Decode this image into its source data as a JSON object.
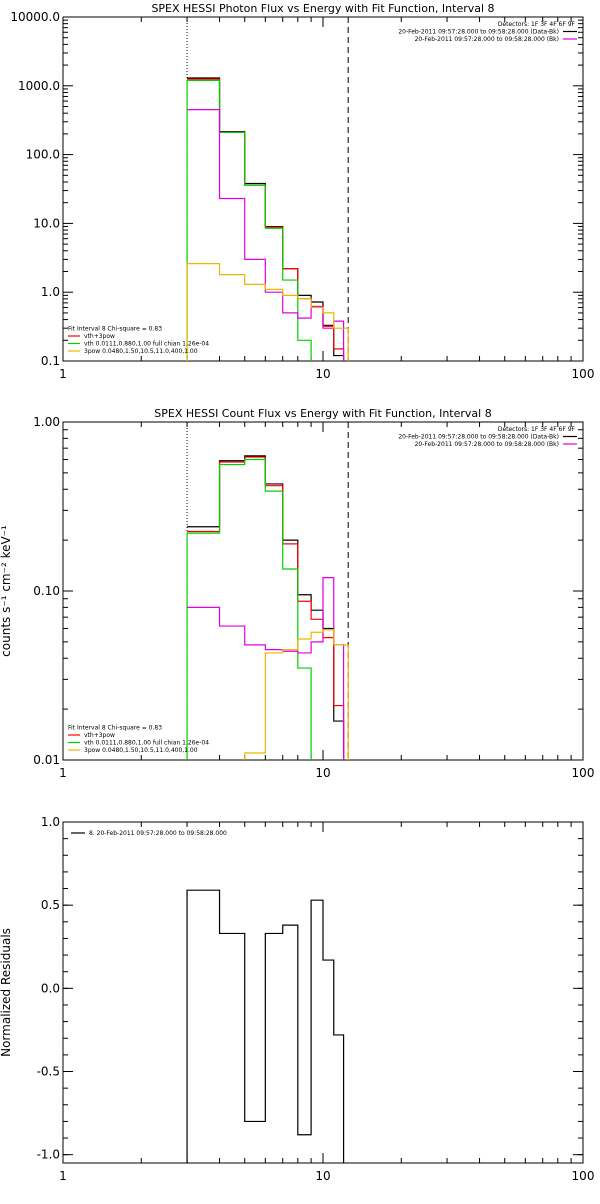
{
  "colors": {
    "black": "#000000",
    "red": "#ff0000",
    "green": "#00d000",
    "magenta": "#e000e0",
    "yellow": "#e8b800"
  },
  "chart_data": [
    {
      "type": "line",
      "title": "SPEX HESSI Photon Flux vs Energy with Fit Function, Interval 8",
      "xlabel": "",
      "ylabel": "",
      "x_scale": "log",
      "y_scale": "log",
      "xlim": [
        1,
        100
      ],
      "ylim": [
        0.1,
        10000
      ],
      "x_ticks": [
        {
          "v": 1,
          "label": "1"
        },
        {
          "v": 10,
          "label": "10"
        },
        {
          "v": 100,
          "label": "100"
        }
      ],
      "y_ticks": [
        {
          "v": 0.1,
          "label": "0.1"
        },
        {
          "v": 1,
          "label": "1.0"
        },
        {
          "v": 10,
          "label": "10.0"
        },
        {
          "v": 100,
          "label": "100.0"
        },
        {
          "v": 1000,
          "label": "1000.0"
        },
        {
          "v": 10000,
          "label": "10000.0"
        }
      ],
      "vlines": [
        {
          "x": 3.0,
          "style": "dotted"
        },
        {
          "x": 12.5,
          "style": "dashed"
        }
      ],
      "legend_top": {
        "placement": "top-right",
        "lines": [
          {
            "text": "Detectors: 1F 3F 4F 6F 9F",
            "color": ""
          },
          {
            "text": "20-Feb-2011 09:57:28.000 to 09:58:28.000 (Data-Bk)",
            "color": "black"
          },
          {
            "text": "20-Feb-2011 09:57:28.000 to 09:58:28.000 (Bk)",
            "color": "magenta"
          }
        ]
      },
      "legend_bottom": {
        "placement": "bottom-left",
        "lines": [
          {
            "text": "Fit Interval 8   Chi-square = 0.83",
            "color": ""
          },
          {
            "text": "vth+3pow",
            "color": "red"
          },
          {
            "text": "vth 0.0111,0.880,1.00  full chian 1.26e-04",
            "color": "green"
          },
          {
            "text": "3pow 0.0480,1.50,10.5,11.0,400,1.00",
            "color": "yellow"
          }
        ]
      },
      "series": [
        {
          "color": "black",
          "edges": [
            3.0,
            4.0,
            5.0,
            6.0,
            7.0,
            8.0,
            9.0,
            10.0,
            11.0,
            12.0
          ],
          "values": [
            1300,
            215,
            38,
            9.0,
            2.2,
            0.9,
            0.72,
            0.33,
            0.12
          ],
          "drop_last": true
        },
        {
          "color": "red",
          "edges": [
            3.0,
            4.0,
            5.0,
            6.0,
            7.0,
            8.0,
            9.0,
            10.0,
            11.0,
            12.0
          ],
          "values": [
            1250,
            210,
            36,
            8.8,
            2.2,
            0.8,
            0.62,
            0.32,
            0.15
          ],
          "drop_last": true
        },
        {
          "color": "green",
          "edges": [
            3.0,
            4.0,
            5.0,
            6.0,
            7.0,
            8.0,
            9.0
          ],
          "values": [
            1200,
            210,
            36,
            8.5,
            1.5,
            0.2
          ],
          "drop_first": true,
          "drop_last": true
        },
        {
          "color": "magenta",
          "edges": [
            3.0,
            4.0,
            5.0,
            6.0,
            7.0,
            8.0,
            9.0,
            10.0,
            11.0,
            12.0
          ],
          "values": [
            450,
            23,
            3.0,
            1.0,
            0.5,
            0.42,
            0.62,
            0.3,
            0.38
          ],
          "drop_last": true
        },
        {
          "color": "yellow",
          "edges": [
            3.0,
            4.0,
            5.0,
            6.0,
            7.0,
            8.0,
            9.0,
            10.0,
            11.0,
            12.5
          ],
          "values": [
            2.6,
            1.8,
            1.3,
            1.1,
            0.9,
            0.8,
            0.6,
            0.5,
            0.3
          ],
          "drop_first": true,
          "drop_last": true
        }
      ]
    },
    {
      "type": "line",
      "title": "SPEX HESSI Count Flux vs Energy with Fit Function, Interval 8",
      "xlabel": "",
      "ylabel": "counts s⁻¹ cm⁻² keV⁻¹",
      "x_scale": "log",
      "y_scale": "log",
      "xlim": [
        1,
        100
      ],
      "ylim": [
        0.01,
        1.0
      ],
      "x_ticks": [
        {
          "v": 1,
          "label": "1"
        },
        {
          "v": 10,
          "label": "10"
        },
        {
          "v": 100,
          "label": "100"
        }
      ],
      "y_ticks": [
        {
          "v": 0.01,
          "label": "0.01"
        },
        {
          "v": 0.1,
          "label": "0.10"
        },
        {
          "v": 1,
          "label": "1.00"
        }
      ],
      "vlines": [
        {
          "x": 3.0,
          "style": "dotted"
        },
        {
          "x": 12.5,
          "style": "dashed"
        }
      ],
      "legend_top": {
        "placement": "top-right",
        "lines": [
          {
            "text": "Detectors: 1F 3F 4F 6F 9F",
            "color": ""
          },
          {
            "text": "20-Feb-2011 09:57:28.000 to 09:58:28.000 (Data-Bk)",
            "color": "black"
          },
          {
            "text": "20-Feb-2011 09:57:28.000 to 09:58:28.000 (Bk)",
            "color": "magenta"
          }
        ]
      },
      "legend_bottom": {
        "placement": "bottom-left",
        "lines": [
          {
            "text": "Fit Interval 8   Chi-square = 0.83",
            "color": ""
          },
          {
            "text": "vth+3pow",
            "color": "red"
          },
          {
            "text": "vth 0.0111,0.880,1.00  full chian 1.26e-04",
            "color": "green"
          },
          {
            "text": "3pow 0.0480,1.50,10.5,11.0,400,1.00",
            "color": "yellow"
          }
        ]
      },
      "series": [
        {
          "color": "black",
          "edges": [
            3.0,
            4.0,
            5.0,
            6.0,
            7.0,
            8.0,
            9.0,
            10.0,
            11.0,
            12.0
          ],
          "values": [
            0.24,
            0.59,
            0.63,
            0.43,
            0.2,
            0.095,
            0.077,
            0.06,
            0.017
          ],
          "drop_last": true
        },
        {
          "color": "red",
          "edges": [
            3.0,
            4.0,
            5.0,
            6.0,
            7.0,
            8.0,
            9.0,
            10.0,
            11.0,
            12.0
          ],
          "values": [
            0.225,
            0.58,
            0.62,
            0.42,
            0.19,
            0.087,
            0.068,
            0.053,
            0.021
          ],
          "drop_last": true
        },
        {
          "color": "green",
          "edges": [
            3.0,
            4.0,
            5.0,
            6.0,
            7.0,
            8.0,
            9.0
          ],
          "values": [
            0.22,
            0.56,
            0.6,
            0.39,
            0.135,
            0.035
          ],
          "drop_first": true,
          "drop_last": true
        },
        {
          "color": "magenta",
          "edges": [
            3.0,
            4.0,
            5.0,
            6.0,
            7.0,
            8.0,
            9.0,
            10.0,
            11.0,
            12.0
          ],
          "values": [
            0.08,
            0.062,
            0.048,
            0.045,
            0.044,
            0.043,
            0.05,
            0.12,
            0.048
          ],
          "drop_last": true
        },
        {
          "color": "yellow",
          "edges": [
            5.0,
            6.0,
            7.0,
            8.0,
            9.0,
            10.0,
            11.0,
            12.5
          ],
          "values": [
            0.011,
            0.043,
            0.045,
            0.052,
            0.057,
            0.059,
            0.048
          ],
          "drop_first": true,
          "drop_last": true
        }
      ]
    },
    {
      "type": "line",
      "title": "",
      "xlabel": "",
      "ylabel": "Normalized Residuals",
      "x_scale": "log",
      "y_scale": "linear",
      "xlim": [
        1,
        100
      ],
      "ylim": [
        -1.05,
        1.0
      ],
      "x_ticks": [
        {
          "v": 1,
          "label": "1"
        },
        {
          "v": 10,
          "label": "10"
        },
        {
          "v": 100,
          "label": "100"
        }
      ],
      "y_ticks": [
        {
          "v": -1.0,
          "label": "-1.0"
        },
        {
          "v": -0.5,
          "label": "-0.5"
        },
        {
          "v": 0.0,
          "label": "0.0"
        },
        {
          "v": 0.5,
          "label": "0.5"
        },
        {
          "v": 1.0,
          "label": "1.0"
        }
      ],
      "vlines": [],
      "legend_top": {
        "placement": "top-left",
        "lines": [
          {
            "text": "8. 20-Feb-2011 09:57:28.000 to 09:58:28.000",
            "color": "black"
          }
        ]
      },
      "legend_bottom": {
        "placement": "",
        "lines": []
      },
      "series": [
        {
          "color": "black",
          "edges": [
            3.0,
            4.0,
            5.0,
            6.0,
            7.0,
            8.0,
            9.0,
            10.0,
            11.0,
            12.0
          ],
          "values": [
            0.59,
            0.33,
            -0.8,
            0.33,
            0.38,
            -0.88,
            0.53,
            0.17,
            -0.28
          ],
          "drop_first": true,
          "drop_last": true
        }
      ]
    }
  ]
}
